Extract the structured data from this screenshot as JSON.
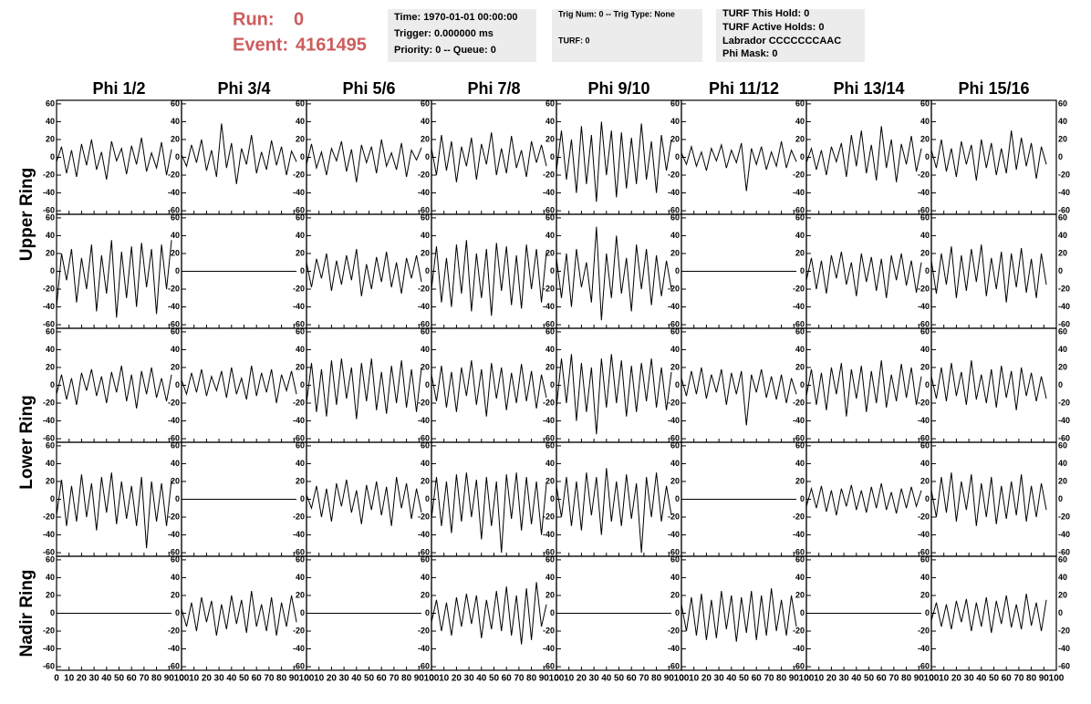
{
  "header": {
    "run_label": "Run:",
    "run": "0",
    "event_label": "Event:",
    "event": "4161495"
  },
  "info_boxes": [
    {
      "lines": [
        {
          "text": "Time: 1970-01-01 00:00:00"
        },
        {
          "text": "Trigger: 0.000000 ms"
        },
        {
          "text": "Priority: 0 -- Queue: 0"
        }
      ]
    },
    {
      "lines": [
        {
          "text": "Trig Num: 0 -- Trig Type: None"
        },
        {
          "text": "TURF: 0"
        }
      ]
    },
    {
      "lines": [
        {
          "text": "TURF This Hold: 0"
        },
        {
          "text": "TURF Active Holds: 0"
        },
        {
          "text": "Labrador CCCCCCCAAC",
          "color": "#dd00dd"
        },
        {
          "text": "Phi Mask: 0"
        }
      ]
    }
  ],
  "chart_data": {
    "type": "line",
    "columns": [
      "Phi 1/2",
      "Phi 3/4",
      "Phi 5/6",
      "Phi 7/8",
      "Phi 9/10",
      "Phi 11/12",
      "Phi 13/14",
      "Phi 15/16"
    ],
    "row_labels": [
      "Upper Ring",
      "Lower Ring",
      "Nadir Ring"
    ],
    "xlim": [
      0,
      100
    ],
    "xticks": [
      0,
      10,
      20,
      30,
      40,
      50,
      60,
      70,
      80,
      90,
      100
    ],
    "ylim": [
      -64,
      64
    ],
    "yticks": [
      -60,
      -40,
      -20,
      0,
      20,
      40,
      60
    ],
    "color": "#000000",
    "x": [
      0,
      4,
      8,
      12,
      16,
      20,
      24,
      28,
      32,
      36,
      40,
      44,
      48,
      52,
      56,
      60,
      64,
      68,
      72,
      76,
      80,
      84,
      88,
      92
    ],
    "panels": [
      {
        "values": [
          -5,
          12,
          -18,
          8,
          -22,
          15,
          -9,
          20,
          -14,
          6,
          -25,
          18,
          -4,
          10,
          -19,
          13,
          -8,
          22,
          -16,
          5,
          -12,
          17,
          -20,
          9
        ]
      },
      {
        "values": [
          3,
          -10,
          14,
          -6,
          20,
          -15,
          8,
          -22,
          38,
          -12,
          16,
          -30,
          10,
          -8,
          25,
          -18,
          6,
          -14,
          19,
          -9,
          12,
          -20,
          7,
          -5
        ]
      },
      {
        "values": [
          -8,
          15,
          -12,
          6,
          -20,
          10,
          -4,
          18,
          -16,
          9,
          -28,
          14,
          -6,
          12,
          -18,
          20,
          -10,
          5,
          -14,
          16,
          -22,
          8,
          -3,
          11
        ]
      },
      {
        "values": [
          10,
          -20,
          25,
          -15,
          18,
          -28,
          12,
          -10,
          22,
          -25,
          15,
          -8,
          28,
          -20,
          10,
          -18,
          24,
          -12,
          8,
          -22,
          18,
          -6,
          14,
          -10
        ]
      },
      {
        "values": [
          -15,
          30,
          -25,
          20,
          -40,
          35,
          -30,
          25,
          -50,
          40,
          -20,
          30,
          -45,
          28,
          -35,
          22,
          -30,
          38,
          -25,
          18,
          -40,
          25,
          -15,
          20
        ]
      },
      {
        "values": [
          5,
          -8,
          12,
          -10,
          6,
          -15,
          10,
          -4,
          14,
          -12,
          8,
          -6,
          16,
          -38,
          10,
          -8,
          12,
          -14,
          6,
          -10,
          18,
          -12,
          8,
          -5
        ]
      },
      {
        "values": [
          -6,
          10,
          -14,
          8,
          -20,
          12,
          -5,
          16,
          -22,
          25,
          -10,
          30,
          -18,
          14,
          -26,
          35,
          -12,
          20,
          -28,
          15,
          -8,
          24,
          -16,
          10
        ]
      },
      {
        "values": [
          8,
          -12,
          20,
          -16,
          10,
          -22,
          18,
          -8,
          14,
          -26,
          20,
          -12,
          16,
          -20,
          10,
          -18,
          30,
          -14,
          22,
          -10,
          16,
          -24,
          12,
          -8
        ]
      },
      {
        "values": [
          -40,
          20,
          -10,
          25,
          -35,
          15,
          -20,
          30,
          -45,
          18,
          -25,
          35,
          -52,
          22,
          -30,
          28,
          -40,
          32,
          -18,
          25,
          -48,
          30,
          -20,
          35
        ]
      },
      {
        "values": [
          0,
          0,
          0,
          0,
          0,
          0,
          0,
          0,
          0,
          0,
          0,
          0,
          0,
          0,
          0,
          0,
          0,
          0,
          0,
          0,
          0,
          0,
          0,
          0
        ]
      },
      {
        "values": [
          10,
          -18,
          14,
          -8,
          20,
          -22,
          12,
          -15,
          18,
          -10,
          25,
          -28,
          8,
          -20,
          16,
          -12,
          22,
          -18,
          10,
          -25,
          15,
          -8,
          18,
          -12
        ]
      },
      {
        "values": [
          -20,
          28,
          -35,
          15,
          -40,
          30,
          -25,
          35,
          -45,
          20,
          -30,
          25,
          -50,
          32,
          -22,
          28,
          -38,
          18,
          -42,
          30,
          -20,
          25,
          -35,
          22
        ]
      },
      {
        "values": [
          15,
          -30,
          20,
          -40,
          25,
          -18,
          10,
          -35,
          50,
          -55,
          20,
          -30,
          40,
          -25,
          15,
          -45,
          30,
          -20,
          25,
          -38,
          18,
          -28,
          12,
          -20
        ]
      },
      {
        "values": [
          0,
          0,
          0,
          0,
          0,
          0,
          0,
          0,
          0,
          0,
          0,
          0,
          0,
          0,
          0,
          0,
          0,
          0,
          0,
          0,
          0,
          0,
          0,
          0
        ]
      },
      {
        "values": [
          -10,
          15,
          -20,
          12,
          -25,
          18,
          -8,
          22,
          -15,
          10,
          -28,
          20,
          -12,
          16,
          -22,
          14,
          -30,
          18,
          -10,
          20,
          -16,
          12,
          -24,
          10
        ]
      },
      {
        "values": [
          12,
          -25,
          20,
          -15,
          28,
          -30,
          18,
          -22,
          25,
          -12,
          30,
          -28,
          15,
          -20,
          22,
          -35,
          20,
          -18,
          26,
          -24,
          14,
          -30,
          20,
          -15
        ]
      },
      {
        "values": [
          -10,
          12,
          -16,
          8,
          -22,
          14,
          -6,
          18,
          -12,
          10,
          -20,
          15,
          -8,
          22,
          -18,
          12,
          -26,
          16,
          -10,
          20,
          -14,
          8,
          -18,
          12
        ]
      },
      {
        "values": [
          6,
          -10,
          14,
          -8,
          18,
          -12,
          10,
          -6,
          16,
          -14,
          20,
          -10,
          8,
          -16,
          22,
          -12,
          14,
          -8,
          18,
          -20,
          12,
          -6,
          16,
          -10
        ]
      },
      {
        "values": [
          -20,
          25,
          -30,
          18,
          -35,
          28,
          -22,
          30,
          -15,
          20,
          -38,
          25,
          -18,
          30,
          -28,
          15,
          -32,
          22,
          -20,
          28,
          -25,
          18,
          -30,
          20
        ]
      },
      {
        "values": [
          12,
          -18,
          22,
          -25,
          15,
          -30,
          20,
          -12,
          28,
          -22,
          18,
          -35,
          25,
          -15,
          20,
          -28,
          14,
          -20,
          24,
          -18,
          16,
          -26,
          12,
          -14
        ]
      },
      {
        "values": [
          -25,
          30,
          -20,
          35,
          -40,
          25,
          -30,
          20,
          -55,
          30,
          -25,
          35,
          -20,
          28,
          -35,
          22,
          -30,
          25,
          -18,
          30,
          -25,
          20,
          -28,
          15
        ]
      },
      {
        "values": [
          8,
          -12,
          16,
          -10,
          20,
          -15,
          12,
          -8,
          18,
          -22,
          14,
          -10,
          16,
          -45,
          12,
          -8,
          18,
          -14,
          10,
          -16,
          12,
          -20,
          8,
          -10
        ]
      },
      {
        "values": [
          -12,
          18,
          -22,
          14,
          -28,
          20,
          -10,
          25,
          -35,
          18,
          -15,
          22,
          -30,
          16,
          -20,
          28,
          -25,
          12,
          -18,
          24,
          -14,
          20,
          -22,
          10
        ]
      },
      {
        "values": [
          10,
          -15,
          20,
          -18,
          25,
          -12,
          15,
          -22,
          28,
          -16,
          12,
          -20,
          18,
          -25,
          22,
          -14,
          16,
          -28,
          20,
          -12,
          14,
          -18,
          10,
          -15
        ]
      },
      {
        "values": [
          -18,
          22,
          -30,
          15,
          -25,
          28,
          -20,
          18,
          -35,
          25,
          -15,
          30,
          -28,
          20,
          -22,
          15,
          -30,
          25,
          -55,
          20,
          -25,
          18,
          -30,
          22
        ]
      },
      {
        "values": [
          0,
          0,
          0,
          0,
          0,
          0,
          0,
          0,
          0,
          0,
          0,
          0,
          0,
          0,
          0,
          0,
          0,
          0,
          0,
          0,
          0,
          0,
          0,
          0
        ]
      },
      {
        "values": [
          5,
          -10,
          15,
          -20,
          12,
          -25,
          18,
          -8,
          22,
          -15,
          10,
          -28,
          16,
          -12,
          20,
          -18,
          14,
          -30,
          25,
          -10,
          18,
          -22,
          12,
          -15
        ]
      },
      {
        "values": [
          -22,
          25,
          -30,
          20,
          -38,
          28,
          -25,
          30,
          -20,
          22,
          -45,
          25,
          -30,
          20,
          -60,
          28,
          -22,
          30,
          -35,
          25,
          -28,
          20,
          -40,
          18
        ]
      },
      {
        "values": [
          15,
          -20,
          25,
          -30,
          20,
          -35,
          30,
          -18,
          25,
          -40,
          35,
          -25,
          20,
          -30,
          28,
          -22,
          18,
          -60,
          25,
          -20,
          30,
          -25,
          15,
          -18
        ]
      },
      {
        "values": [
          0,
          0,
          0,
          0,
          0,
          0,
          0,
          0,
          0,
          0,
          0,
          0,
          0,
          0,
          0,
          0,
          0,
          0,
          0,
          0,
          0,
          0,
          0,
          0
        ]
      },
      {
        "values": [
          -8,
          12,
          -10,
          15,
          -14,
          10,
          -18,
          12,
          -8,
          16,
          -12,
          10,
          -15,
          14,
          -10,
          18,
          -12,
          8,
          -16,
          12,
          -10,
          14,
          -8,
          10
        ]
      },
      {
        "values": [
          10,
          -20,
          25,
          -15,
          30,
          -25,
          20,
          -12,
          28,
          -30,
          18,
          -20,
          25,
          -28,
          15,
          -22,
          20,
          -18,
          28,
          -25,
          15,
          -20,
          18,
          -12
        ]
      },
      {
        "values": [
          0,
          0,
          0,
          0,
          0,
          0,
          0,
          0,
          0,
          0,
          0,
          0,
          0,
          0,
          0,
          0,
          0,
          0,
          0,
          0,
          0,
          0,
          0,
          0
        ]
      },
      {
        "values": [
          5,
          -15,
          12,
          -20,
          18,
          -10,
          14,
          -25,
          10,
          -18,
          20,
          -12,
          15,
          -22,
          25,
          -15,
          10,
          -20,
          18,
          -25,
          12,
          -15,
          20,
          -10
        ]
      },
      {
        "values": [
          0,
          0,
          0,
          0,
          0,
          0,
          0,
          0,
          0,
          0,
          0,
          0,
          0,
          0,
          0,
          0,
          0,
          0,
          0,
          0,
          0,
          0,
          0,
          0
        ]
      },
      {
        "values": [
          -10,
          15,
          -20,
          12,
          -25,
          18,
          -15,
          22,
          -12,
          20,
          -28,
          15,
          -18,
          25,
          -20,
          30,
          -25,
          20,
          -35,
          28,
          -30,
          35,
          -15,
          10
        ]
      },
      {
        "values": [
          0,
          0,
          0,
          0,
          0,
          0,
          0,
          0,
          0,
          0,
          0,
          0,
          0,
          0,
          0,
          0,
          0,
          0,
          0,
          0,
          0,
          0,
          0,
          0
        ]
      },
      {
        "values": [
          10,
          -20,
          18,
          -25,
          22,
          -30,
          15,
          -28,
          25,
          -18,
          20,
          -32,
          18,
          -22,
          25,
          -30,
          20,
          -25,
          28,
          -20,
          15,
          -25,
          20,
          -15
        ]
      },
      {
        "values": [
          0,
          0,
          0,
          0,
          0,
          0,
          0,
          0,
          0,
          0,
          0,
          0,
          0,
          0,
          0,
          0,
          0,
          0,
          0,
          0,
          0,
          0,
          0,
          0
        ]
      },
      {
        "values": [
          -8,
          12,
          -15,
          10,
          -18,
          14,
          -10,
          16,
          -20,
          12,
          -15,
          18,
          -22,
          14,
          -12,
          20,
          -16,
          10,
          -18,
          22,
          -14,
          12,
          -20,
          15
        ]
      }
    ]
  }
}
